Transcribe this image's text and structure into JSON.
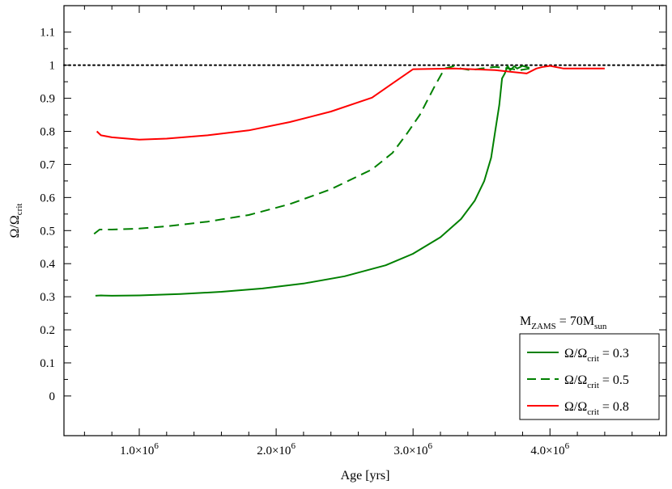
{
  "chart_data": {
    "type": "line",
    "xlabel": "Age [yrs]",
    "ylabel": {
      "main": "Ω/Ω",
      "sub": "crit"
    },
    "xlim": [
      450000,
      4850000
    ],
    "ylim": [
      -0.12,
      1.18
    ],
    "x_ticks": [
      {
        "value": 1000000,
        "mantissa": "1.0",
        "base": "×10",
        "exp": "6"
      },
      {
        "value": 2000000,
        "mantissa": "2.0",
        "base": "×10",
        "exp": "6"
      },
      {
        "value": 3000000,
        "mantissa": "3.0",
        "base": "×10",
        "exp": "6"
      },
      {
        "value": 4000000,
        "mantissa": "4.0",
        "base": "×10",
        "exp": "6"
      }
    ],
    "y_ticks": [
      {
        "value": 0,
        "label": "0"
      },
      {
        "value": 0.1,
        "label": "0.1"
      },
      {
        "value": 0.2,
        "label": "0.2"
      },
      {
        "value": 0.3,
        "label": "0.3"
      },
      {
        "value": 0.4,
        "label": "0.4"
      },
      {
        "value": 0.5,
        "label": "0.5"
      },
      {
        "value": 0.6,
        "label": "0.6"
      },
      {
        "value": 0.7,
        "label": "0.7"
      },
      {
        "value": 0.8,
        "label": "0.8"
      },
      {
        "value": 0.9,
        "label": "0.9"
      },
      {
        "value": 1,
        "label": "1"
      },
      {
        "value": 1.1,
        "label": "1.1"
      }
    ],
    "reference_line": {
      "y": 1.0,
      "style": "dotted",
      "color": "#000000"
    },
    "legend": {
      "title": {
        "prefix": "M",
        "sub1": "ZAMS",
        "mid": " = 70M",
        "sub2": "sun"
      },
      "placement": "bottom-right"
    },
    "series": [
      {
        "name": {
          "main": "Ω/Ω",
          "sub": "crit",
          "suffix": " = 0.3"
        },
        "color": "#008000",
        "dash": "solid",
        "x": [
          680000,
          720000,
          800000,
          1000000,
          1300000,
          1600000,
          1900000,
          2200000,
          2500000,
          2800000,
          3000000,
          3200000,
          3350000,
          3450000,
          3520000,
          3570000,
          3600000,
          3630000,
          3650000,
          3670000,
          3690000,
          3710000,
          3740000,
          3760000,
          3800000,
          3850000
        ],
        "values": [
          0.303,
          0.304,
          0.303,
          0.304,
          0.308,
          0.315,
          0.325,
          0.34,
          0.362,
          0.395,
          0.43,
          0.48,
          0.535,
          0.59,
          0.65,
          0.72,
          0.8,
          0.88,
          0.96,
          0.975,
          0.998,
          0.985,
          0.997,
          0.99,
          0.998,
          0.992
        ]
      },
      {
        "name": {
          "main": "Ω/Ω",
          "sub": "crit",
          "suffix": " = 0.5"
        },
        "color": "#008000",
        "dash": "dashed",
        "x": [
          670000,
          710000,
          800000,
          1000000,
          1200000,
          1500000,
          1800000,
          2100000,
          2400000,
          2700000,
          2850000,
          2950000,
          3050000,
          3150000,
          3230000,
          3280000,
          3300000,
          3350000,
          3420000,
          3500000,
          3600000,
          3700000,
          3780000,
          3850000
        ],
        "values": [
          0.49,
          0.503,
          0.503,
          0.506,
          0.513,
          0.527,
          0.547,
          0.58,
          0.625,
          0.685,
          0.735,
          0.79,
          0.85,
          0.93,
          0.99,
          0.995,
          0.998,
          0.99,
          0.985,
          0.99,
          0.995,
          0.99,
          0.985,
          0.99
        ]
      },
      {
        "name": {
          "main": "Ω/Ω",
          "sub": "crit",
          "suffix": " = 0.8"
        },
        "color": "#ff0000",
        "dash": "solid",
        "x": [
          690000,
          720000,
          800000,
          1000000,
          1200000,
          1500000,
          1800000,
          2100000,
          2400000,
          2700000,
          2850000,
          3000000,
          3300000,
          3600000,
          3830000,
          3900000,
          3950000,
          4000000,
          4100000,
          4200000,
          4400000
        ],
        "values": [
          0.8,
          0.788,
          0.782,
          0.775,
          0.778,
          0.788,
          0.803,
          0.828,
          0.86,
          0.902,
          0.945,
          0.988,
          0.99,
          0.985,
          0.975,
          0.99,
          0.995,
          0.998,
          0.99,
          0.99,
          0.99
        ]
      }
    ]
  }
}
